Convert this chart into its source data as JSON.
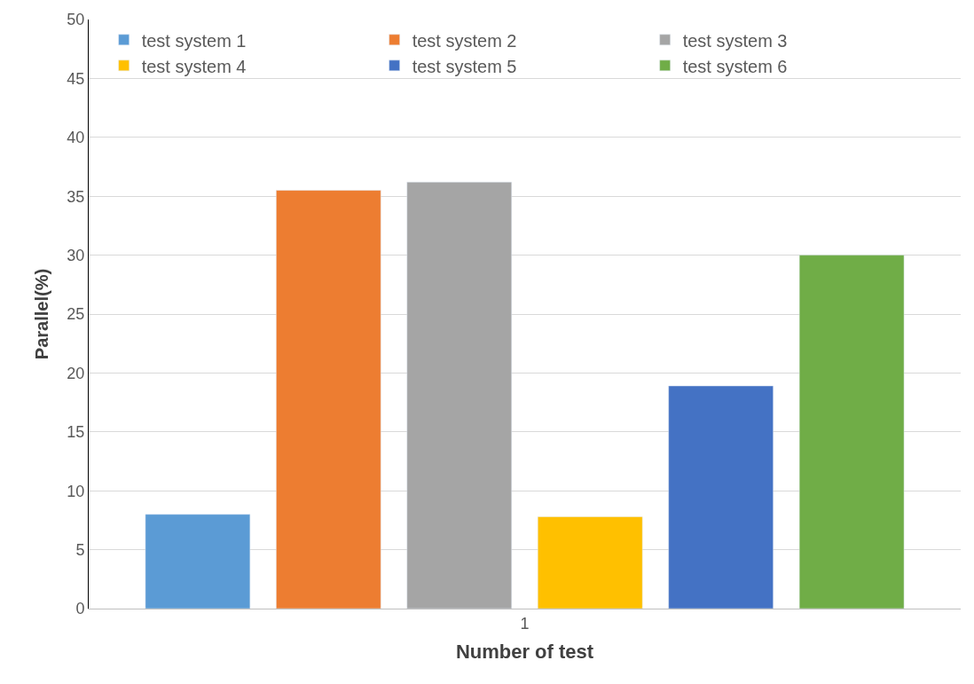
{
  "chart_data": {
    "type": "bar",
    "xlabel": "Number of test",
    "ylabel": "Parallel(%)",
    "categories": [
      "1"
    ],
    "series": [
      {
        "name": "test system 1",
        "color": "#5b9bd5",
        "values": [
          8
        ]
      },
      {
        "name": "test system 2",
        "color": "#ed7d31",
        "values": [
          35.5
        ]
      },
      {
        "name": "test system 3",
        "color": "#a5a5a5",
        "values": [
          36.2
        ]
      },
      {
        "name": "test system 4",
        "color": "#ffc000",
        "values": [
          7.8
        ]
      },
      {
        "name": "test system 5",
        "color": "#4472c4",
        "values": [
          18.9
        ]
      },
      {
        "name": "test system 6",
        "color": "#70ad47",
        "values": [
          30
        ]
      }
    ],
    "ylim": [
      0,
      50
    ],
    "yticks": [
      0,
      5,
      10,
      15,
      20,
      25,
      30,
      35,
      40,
      45,
      50
    ],
    "grid": "y",
    "legend": "top left"
  }
}
